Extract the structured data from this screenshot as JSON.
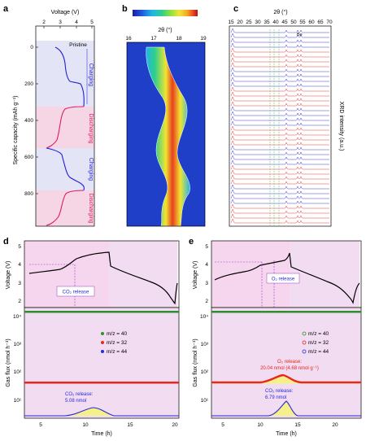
{
  "panels": {
    "a": {
      "letter": "a",
      "x_title": "Voltage (V)",
      "x_ticks": [
        "2",
        "3",
        "4",
        "5"
      ],
      "y_title": "Specific capacity (mAh g⁻¹)",
      "y_ticks": [
        "0",
        "200",
        "400",
        "600",
        "800"
      ],
      "pristine_label": "Pristine",
      "step_labels": [
        "Charging",
        "Discharging",
        "Charging",
        "Discharging"
      ]
    },
    "b": {
      "letter": "b",
      "x_title": "2θ (°)",
      "x_ticks": [
        "16",
        "17",
        "18",
        "19"
      ],
      "colorbar_colors": [
        "#1a1aa8",
        "#1f5fe0",
        "#22b5e8",
        "#2fd08a",
        "#9be03c",
        "#f0e531",
        "#f5a623",
        "#e8401f",
        "#b01414"
      ]
    },
    "c": {
      "letter": "c",
      "x_title": "2θ (°)",
      "x_ticks": [
        "15",
        "20",
        "25",
        "30",
        "35",
        "40",
        "45",
        "50",
        "55",
        "60",
        "65",
        "70"
      ],
      "y_title": "XRD intensity (a.u.)",
      "peak_marker": "Be"
    },
    "d": {
      "letter": "d",
      "voltage_title": "Voltage (V)",
      "voltage_ticks": [
        "2",
        "3",
        "4",
        "5"
      ],
      "flux_title": "Gas flux (nmol h⁻¹)",
      "flux_ticks": [
        "10¹",
        "10²",
        "10³",
        "10⁴"
      ],
      "time_title": "Time (h)",
      "time_ticks": [
        "5",
        "10",
        "15",
        "20"
      ],
      "release_box": "CO₂ release",
      "co2_note_1": "CO₂ release:",
      "co2_note_2": "5.08 nmol",
      "legend": [
        "m/z = 40",
        "m/z = 32",
        "m/z = 44"
      ]
    },
    "e": {
      "letter": "e",
      "voltage_title": "Voltage (V)",
      "voltage_ticks": [
        "2",
        "3",
        "4",
        "5"
      ],
      "flux_title": "Gas flux (nmol h⁻¹)",
      "flux_ticks": [
        "10¹",
        "10²",
        "10³",
        "10⁴"
      ],
      "time_title": "Time (h)",
      "time_ticks": [
        "5",
        "10",
        "15",
        "20"
      ],
      "release_box": "O₂ release",
      "o2_note_1": "O₂ release:",
      "o2_note_2": "20.04 nmol (4.68 nmol g⁻¹)",
      "co2_note_1": "CO₂ release:",
      "co2_note_2": "6.79 nmol",
      "legend": [
        "m/z = 40",
        "m/z = 32",
        "m/z = 44"
      ]
    }
  },
  "colors": {
    "charge": "#1f1fd6",
    "discharge": "#e0195c",
    "charge_band": "#e4e4f7",
    "discharge_band": "#f6d6e4",
    "gas_band": "#f1dcf1",
    "mz40": "#2f8f2f",
    "mz32": "#e8281e",
    "mz44": "#2a2ad8",
    "highlight": "#f6f08a"
  }
}
